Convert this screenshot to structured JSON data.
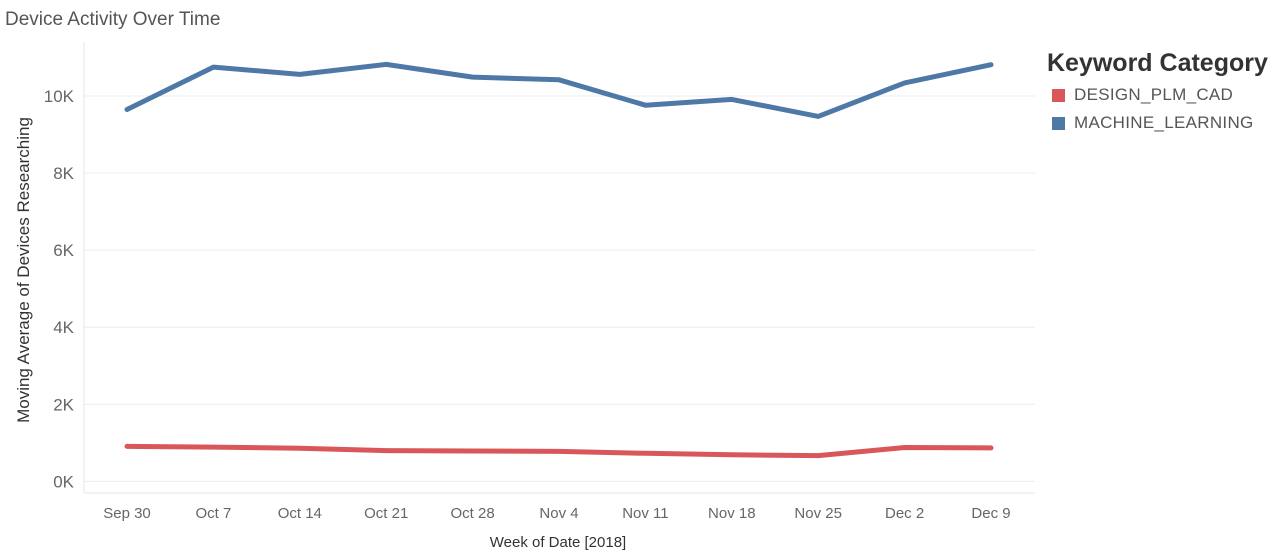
{
  "title": "Device Activity Over Time",
  "legend": {
    "title": "Keyword Category",
    "items": [
      {
        "label": "DESIGN_PLM_CAD",
        "color": "#d9575a"
      },
      {
        "label": "MACHINE_LEARNING",
        "color": "#4e79a7"
      }
    ]
  },
  "chart_data": {
    "type": "line",
    "title": "Device Activity Over Time",
    "xlabel": "Week of Date [2018]",
    "ylabel": "Moving Average of Devices Researching",
    "categories": [
      "Sep 30",
      "Oct 7",
      "Oct 14",
      "Oct 21",
      "Oct 28",
      "Nov 4",
      "Nov 11",
      "Nov 18",
      "Nov 25",
      "Dec 2",
      "Dec 9"
    ],
    "yticks": [
      0,
      2000,
      4000,
      6000,
      8000,
      10000
    ],
    "ytick_labels": [
      "0K",
      "2K",
      "4K",
      "6K",
      "8K",
      "10K"
    ],
    "ylim": [
      -300,
      11400
    ],
    "grid": true,
    "legend_position": "right",
    "series": [
      {
        "name": "DESIGN_PLM_CAD",
        "color": "#d9575a",
        "values": [
          910,
          890,
          860,
          800,
          790,
          780,
          730,
          690,
          670,
          880,
          870
        ]
      },
      {
        "name": "MACHINE_LEARNING",
        "color": "#4e79a7",
        "values": [
          9650,
          10750,
          10560,
          10820,
          10490,
          10420,
          9760,
          9910,
          9470,
          10340,
          10810
        ]
      }
    ]
  }
}
